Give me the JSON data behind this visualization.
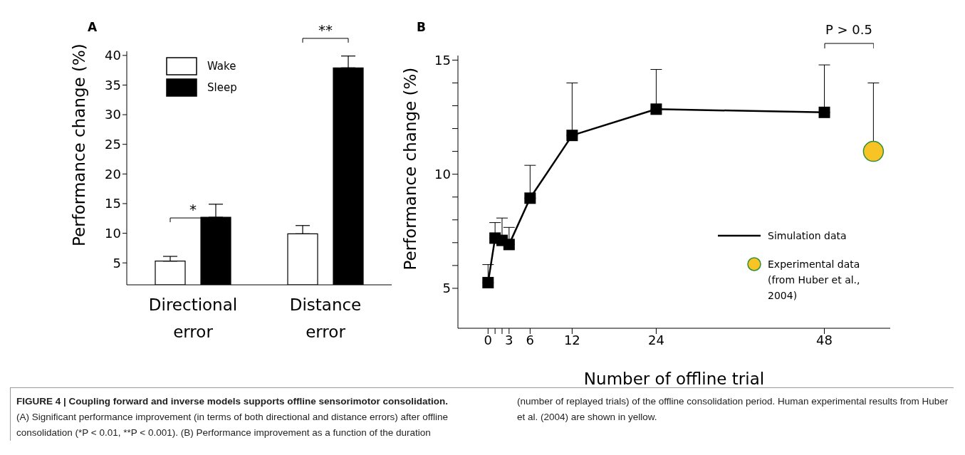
{
  "chart_data": [
    {
      "type": "bar",
      "title": "A",
      "categories": [
        "Directional error",
        "Distance error"
      ],
      "series": [
        {
          "name": "Wake",
          "color": "#ffffff",
          "values": [
            5.3,
            9.9
          ],
          "errors": [
            [
              5.3,
              6.1
            ],
            [
              9.9,
              11.3
            ]
          ]
        },
        {
          "name": "Sleep",
          "color": "#000000",
          "values": [
            12.7,
            37.9
          ],
          "errors": [
            [
              12.7,
              14.9
            ],
            [
              37.9,
              39.9
            ]
          ]
        }
      ],
      "ylabel": "Performance change (%)",
      "ylim": [
        1.3,
        40.7
      ],
      "yticks": [
        5,
        10,
        15,
        20,
        25,
        30,
        35,
        40
      ],
      "legend": "top left",
      "annotations": [
        "*",
        "**",
        "FIGURE 4 | Coupling forward and inverse models supports offline sensorimotor consolidation.",
        "(A) Significant performance improvement (in terms of both directional and distance errors) after offline consolidation (*P < 0.01, **P < 0.001). (B) Performance improvement as a function of the duration (number of replayed trials) of the offline consolidation period. Human experimental results from Huber et al. (2004) are shown in yellow."
      ]
    },
    {
      "type": "line",
      "title": "B",
      "xlabel": "Number of offline trial",
      "ylabel": "Performance change (%)",
      "series": [
        {
          "name": "Simulation data",
          "type": "line",
          "color": "#000000",
          "marker": "square",
          "x": [
            0,
            1,
            2,
            3,
            6,
            12,
            24,
            48
          ],
          "values": [
            5.25,
            7.2,
            7.1,
            6.92,
            8.95,
            11.7,
            12.85,
            12.71
          ],
          "errors": [
            [
              5.25,
              6.04
            ],
            [
              7.2,
              7.88
            ],
            [
              7.1,
              8.08
            ],
            [
              6.92,
              7.67
            ],
            [
              8.95,
              10.39
            ],
            [
              11.7,
              14.0
            ],
            [
              12.85,
              14.59
            ],
            [
              12.71,
              14.79
            ]
          ]
        },
        {
          "name": "Experimental data (from Huber et al., 2004)",
          "type": "scatter",
          "color": "#f7c325",
          "marker": "circle",
          "x": [
            55
          ],
          "values": [
            11.0
          ],
          "errors": [
            [
              11.0,
              14.0
            ]
          ]
        }
      ],
      "xlim": [
        -4.3,
        57.4
      ],
      "xticks": [
        0,
        {
          "value": 1,
          "label": null
        },
        {
          "value": 2,
          "label": null
        },
        3,
        6,
        12,
        24,
        48
      ],
      "ylim": [
        3.25,
        15.2
      ],
      "yticks": [
        5,
        {
          "value": 6,
          "label": null
        },
        {
          "value": 7,
          "label": null
        },
        {
          "value": 8,
          "label": null
        },
        {
          "value": 9,
          "label": null
        },
        10,
        {
          "value": 11,
          "label": null
        },
        {
          "value": 12,
          "label": null
        },
        {
          "value": 13,
          "label": null
        },
        {
          "value": 14,
          "label": null
        },
        15
      ],
      "legend": "bottom right",
      "annotations": [
        "P > 0.5"
      ]
    }
  ]
}
